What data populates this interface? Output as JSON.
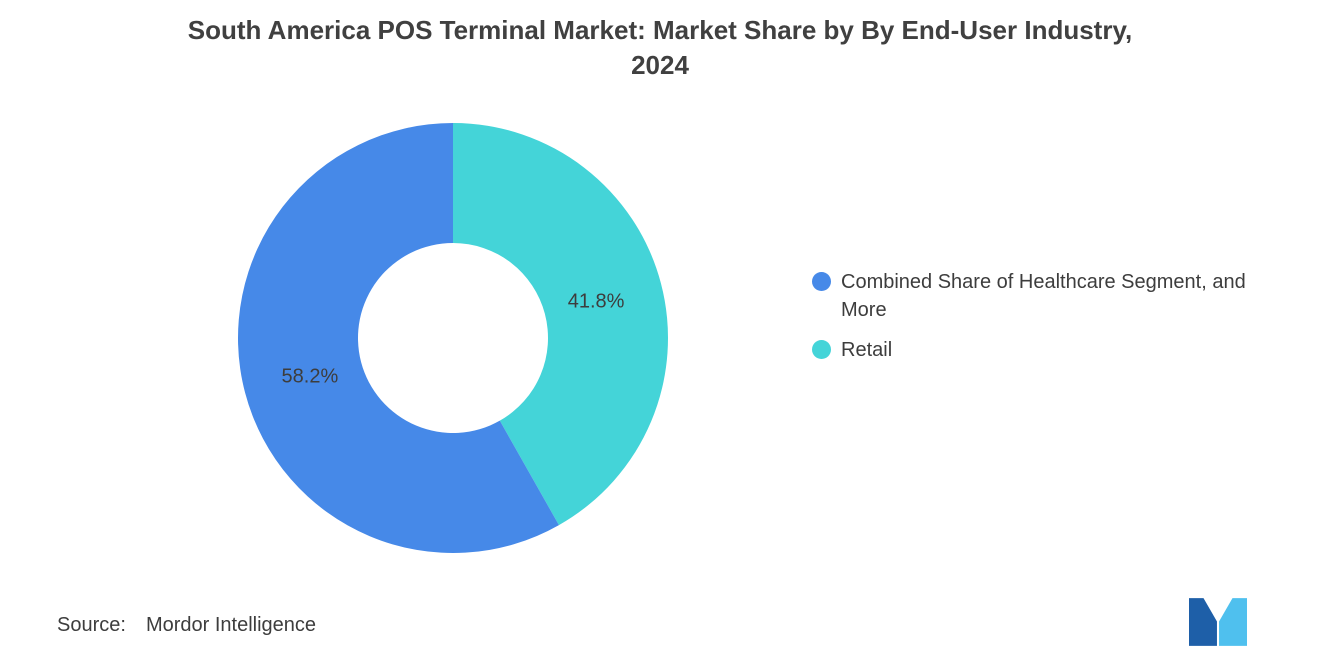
{
  "title": {
    "line1": "South America POS Terminal Market: Market Share by By End-User Industry,",
    "line2": "2024"
  },
  "chart_data": {
    "type": "pie",
    "title": "South America POS Terminal Market: Market Share by By End-User Industry, 2024",
    "donut": true,
    "start_angle_deg": 0,
    "direction": "clockwise",
    "segments": [
      {
        "id": "retail",
        "label": "Retail",
        "value": 41.8,
        "data_label": "41.8%",
        "color": "#44D4D8"
      },
      {
        "id": "healthcare-combined",
        "label": "Combined Share of Healthcare Segment, and More",
        "value": 58.2,
        "data_label": "58.2%",
        "color": "#4689E8"
      }
    ],
    "legend": [
      {
        "label": "Combined Share of Healthcare Segment, and More",
        "color": "#4689E8"
      },
      {
        "label": "Retail",
        "color": "#44D4D8"
      }
    ],
    "legend_position": "right",
    "background": "#FFFFFF"
  },
  "source": {
    "label": "Source:",
    "value": "Mordor Intelligence"
  },
  "logo": {
    "name": "mordor-intelligence-logo",
    "color_dark": "#1E5FA8",
    "color_light": "#4FC0EE"
  }
}
